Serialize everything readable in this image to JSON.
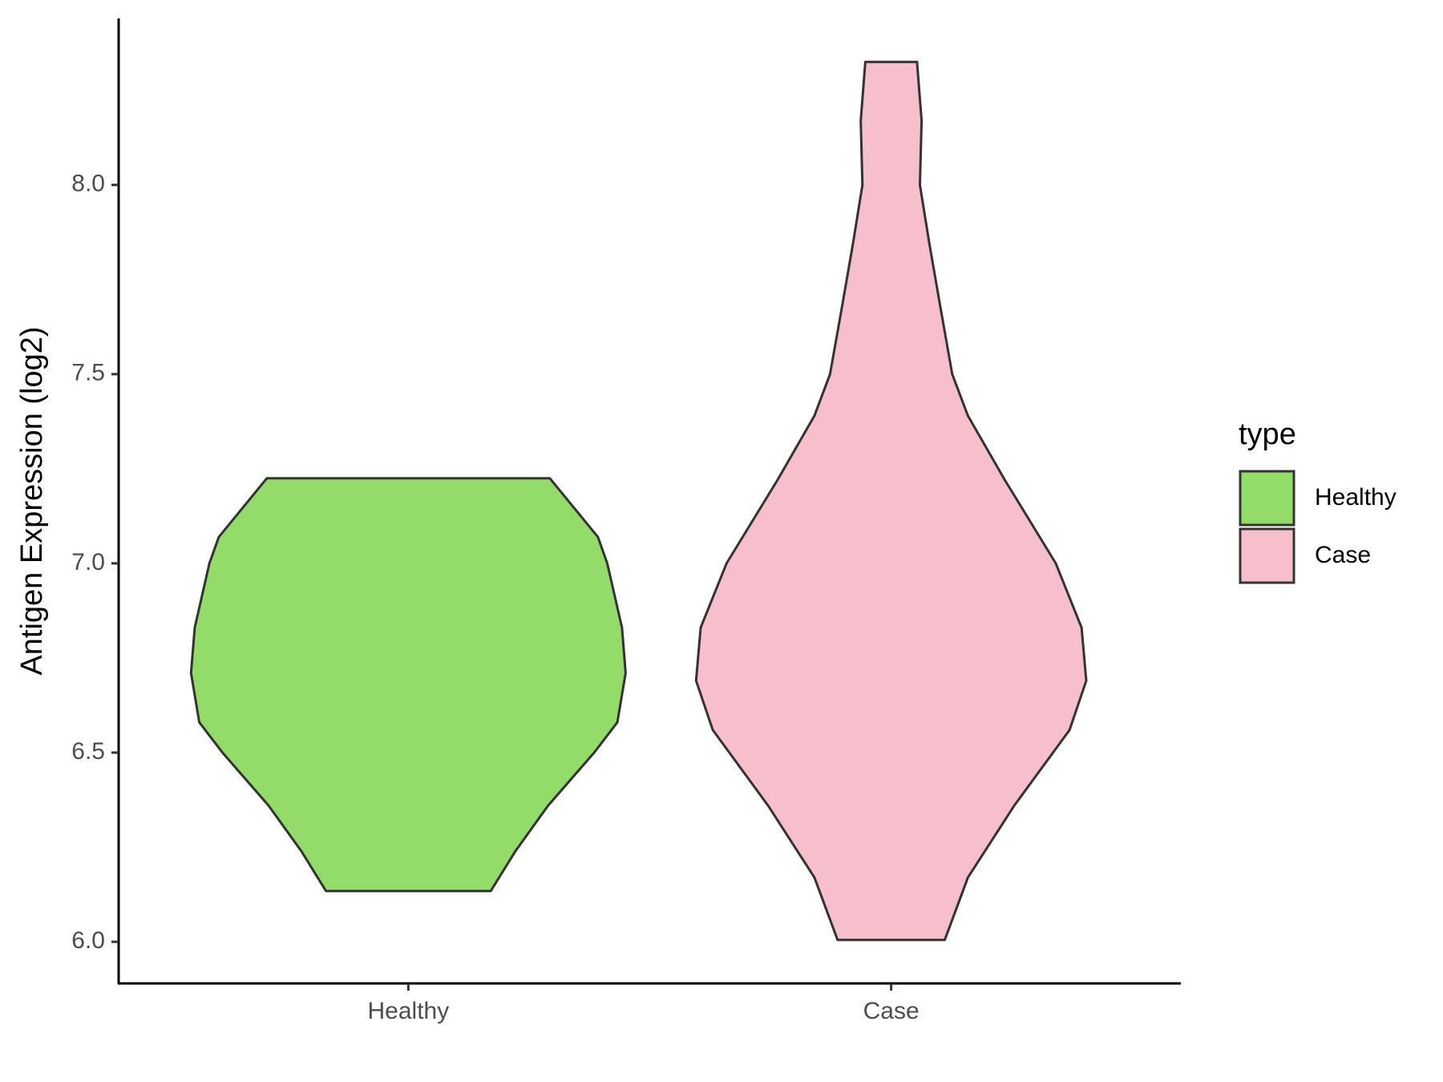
{
  "chart_data": {
    "type": "violin",
    "y_label": "Antigen Expression (log2)",
    "categories": [
      "Healthy",
      "Case"
    ],
    "legend_title": "type",
    "legend_position": "right",
    "ylim": [
      5.89,
      8.44
    ],
    "yticks": [
      {
        "value": 6,
        "label": "6.0"
      },
      6.5,
      {
        "value": 7,
        "label": "7.0"
      },
      7.5,
      {
        "value": 8,
        "label": "8.0"
      }
    ],
    "grid": false,
    "series": [
      {
        "name": "Healthy",
        "color": "#93dc6a",
        "y": [
          7.225,
          7.07,
          7.0,
          6.83,
          6.71,
          6.58,
          6.5,
          6.36,
          6.24,
          6.134
        ],
        "widths": [
          0.586,
          0.785,
          0.824,
          0.885,
          0.9,
          0.866,
          0.77,
          0.579,
          0.444,
          0.341
        ]
      },
      {
        "name": "Case",
        "color": "#f7bfcb",
        "y": [
          8.325,
          8.17,
          8.0,
          7.85,
          7.68,
          7.5,
          7.39,
          7.22,
          7.0,
          6.83,
          6.69,
          6.56,
          6.36,
          6.17,
          6.005
        ],
        "widths": [
          0.107,
          0.126,
          0.119,
          0.157,
          0.203,
          0.253,
          0.318,
          0.471,
          0.682,
          0.789,
          0.808,
          0.739,
          0.51,
          0.318,
          0.222
        ]
      }
    ]
  }
}
